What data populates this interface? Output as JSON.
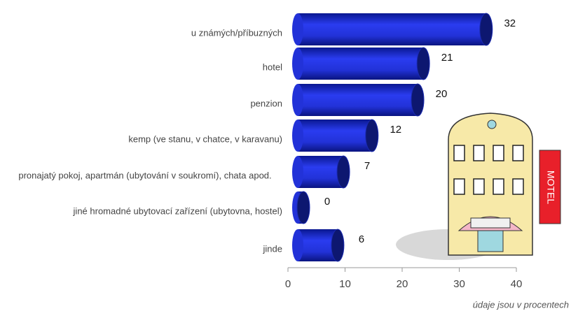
{
  "chart_data": {
    "type": "bar",
    "orientation": "horizontal",
    "categories": [
      "u známých/příbuzných",
      "hotel",
      "penzion",
      "kemp (ve stanu, v chatce, v karavanu)",
      "pronajatý pokoj, apartmán (ubytování v soukromí), chata apod.",
      "jiné hromadné ubytovací zařízení (ubytovna, hostel)",
      "jinde"
    ],
    "values": [
      32,
      21,
      20,
      12,
      7,
      0,
      6
    ],
    "color": "#1f2fd6",
    "xlim": [
      0,
      40
    ],
    "xticks": [
      0,
      10,
      20,
      30,
      40
    ],
    "annotation": "údaje jsou v procentech",
    "illustration_sign": "MOTEL"
  }
}
